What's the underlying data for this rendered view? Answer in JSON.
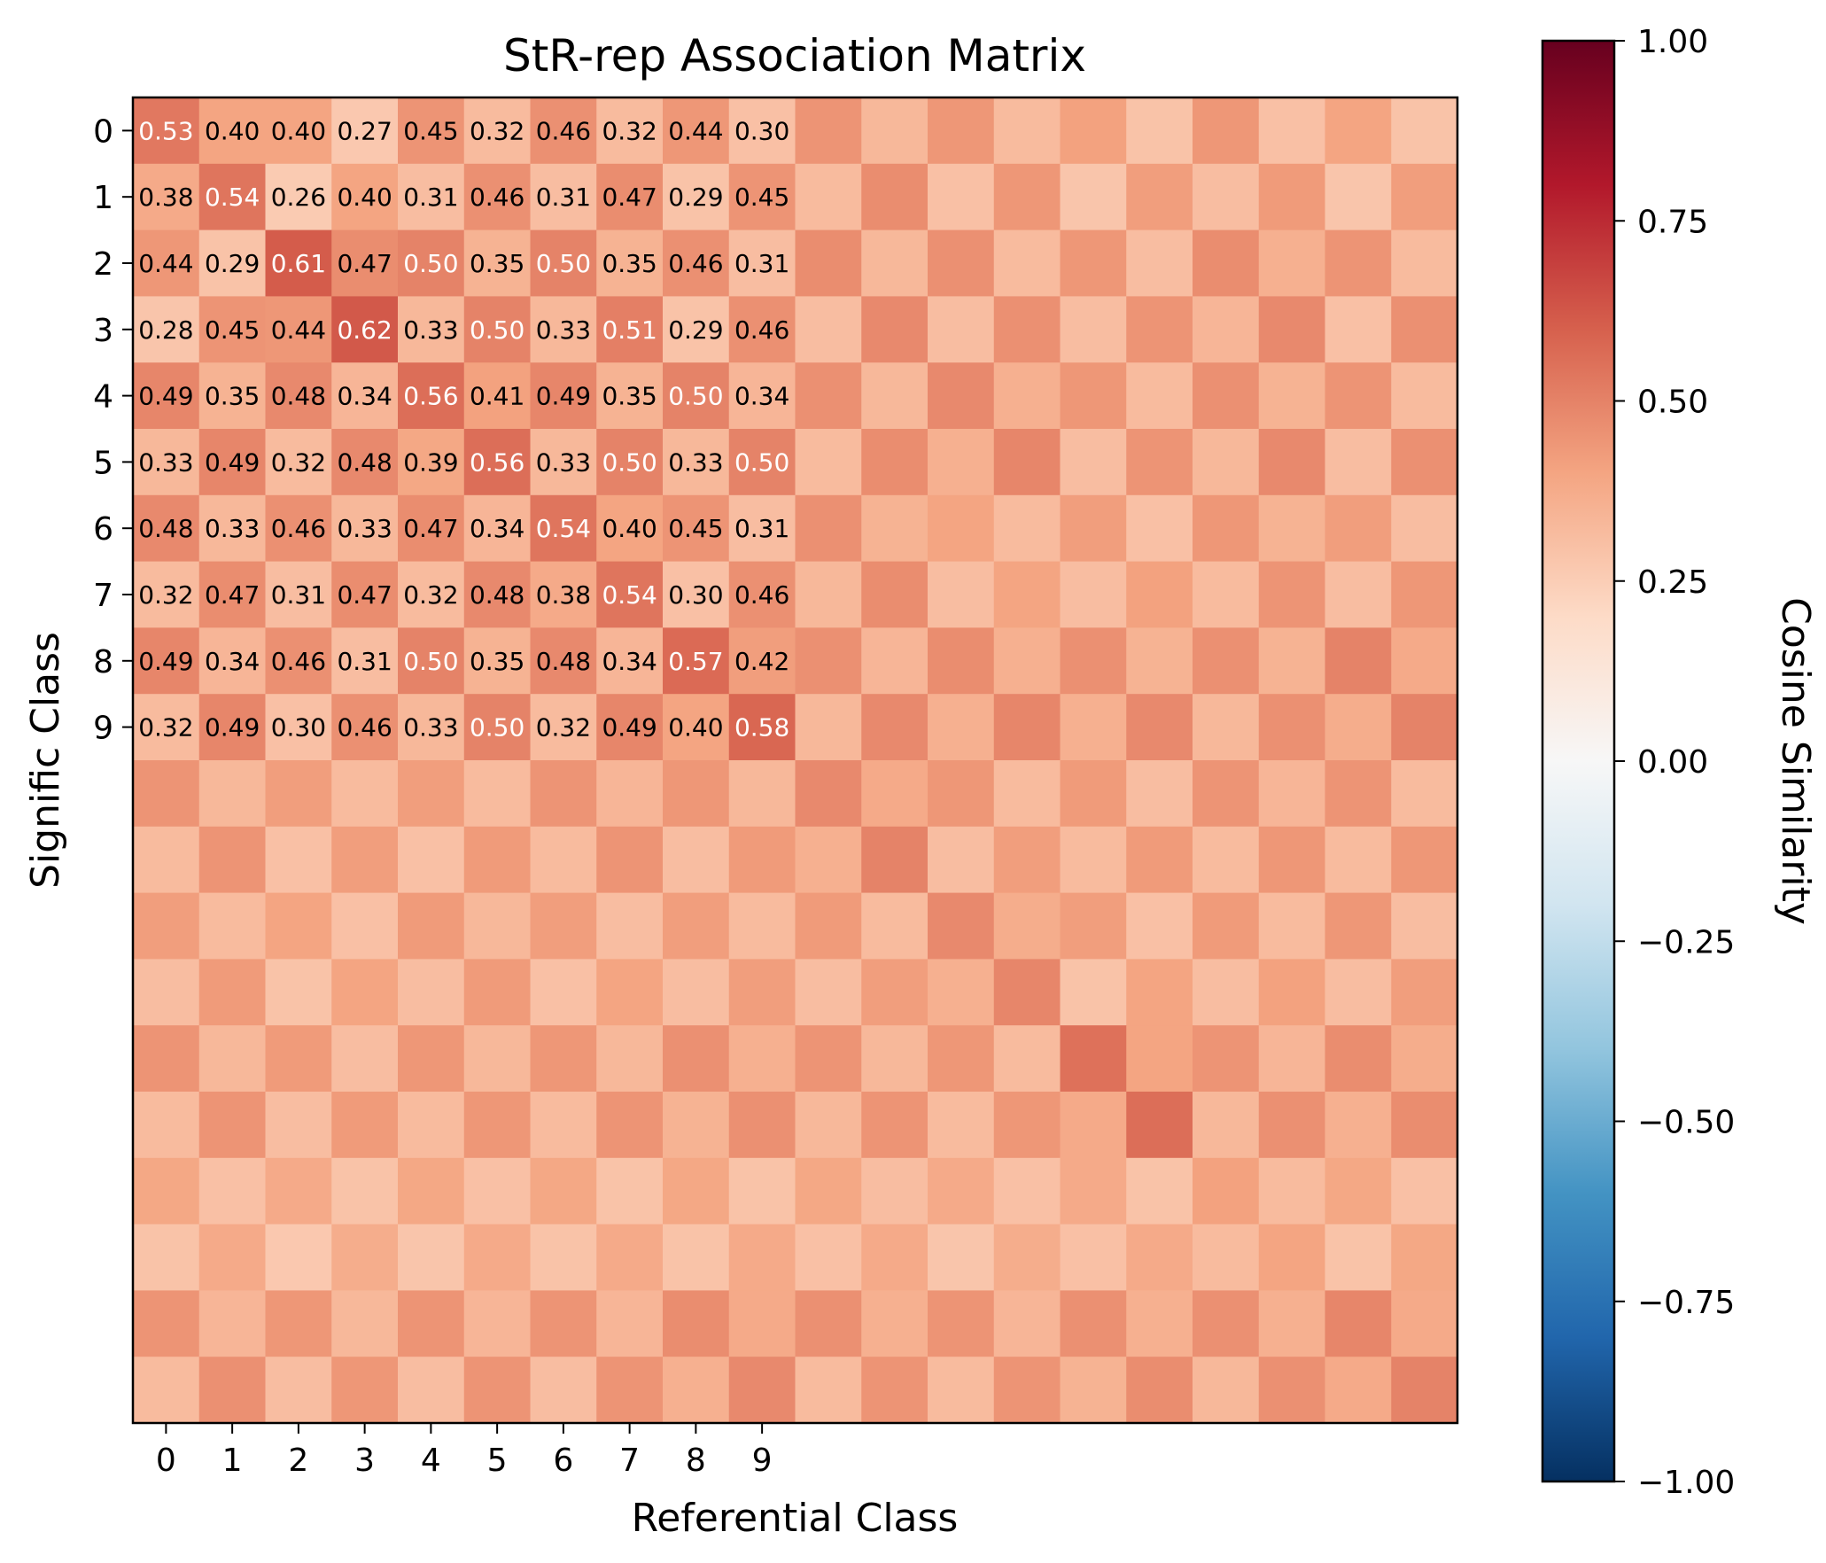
{
  "chart_data": {
    "type": "heatmap",
    "title": "StR-rep Association Matrix",
    "xlabel": "Referential Class",
    "ylabel": "Signific Class",
    "x_tick_labels": [
      "0",
      "1",
      "2",
      "3",
      "4",
      "5",
      "6",
      "7",
      "8",
      "9"
    ],
    "y_tick_labels": [
      "0",
      "1",
      "2",
      "3",
      "4",
      "5",
      "6",
      "7",
      "8",
      "9"
    ],
    "n_rows": 20,
    "n_cols": 20,
    "colorbar": {
      "label": "Cosine Similarity",
      "range": [
        -1.0,
        1.0
      ],
      "tick_labels": [
        "1.00",
        "0.75",
        "0.50",
        "0.25",
        "0.00",
        "−0.25",
        "−0.50",
        "−0.75",
        "−1.00"
      ],
      "tick_values": [
        1.0,
        0.75,
        0.5,
        0.25,
        0.0,
        -0.25,
        -0.5,
        -0.75,
        -1.0
      ],
      "colormap": "RdBu_r",
      "colors": [
        "#053061",
        "#2166ac",
        "#4393c3",
        "#92c5de",
        "#d1e5f0",
        "#f7f7f7",
        "#fddbc7",
        "#f4a582",
        "#d6604d",
        "#b2182b",
        "#67001f"
      ]
    },
    "annotation_labels": [
      [
        "0.53",
        "0.40",
        "0.40",
        "0.27",
        "0.45",
        "0.32",
        "0.46",
        "0.32",
        "0.44",
        "0.30"
      ],
      [
        "0.38",
        "0.54",
        "0.26",
        "0.40",
        "0.31",
        "0.46",
        "0.31",
        "0.47",
        "0.29",
        "0.45"
      ],
      [
        "0.44",
        "0.29",
        "0.61",
        "0.47",
        "0.50",
        "0.35",
        "0.50",
        "0.35",
        "0.46",
        "0.31"
      ],
      [
        "0.28",
        "0.45",
        "0.44",
        "0.62",
        "0.33",
        "0.50",
        "0.33",
        "0.51",
        "0.29",
        "0.46"
      ],
      [
        "0.49",
        "0.35",
        "0.48",
        "0.34",
        "0.56",
        "0.41",
        "0.49",
        "0.35",
        "0.50",
        "0.34"
      ],
      [
        "0.33",
        "0.49",
        "0.32",
        "0.48",
        "0.39",
        "0.56",
        "0.33",
        "0.50",
        "0.33",
        "0.50"
      ],
      [
        "0.48",
        "0.33",
        "0.46",
        "0.33",
        "0.47",
        "0.34",
        "0.54",
        "0.40",
        "0.45",
        "0.31"
      ],
      [
        "0.32",
        "0.47",
        "0.31",
        "0.47",
        "0.32",
        "0.48",
        "0.38",
        "0.54",
        "0.30",
        "0.46"
      ],
      [
        "0.49",
        "0.34",
        "0.46",
        "0.31",
        "0.50",
        "0.35",
        "0.48",
        "0.34",
        "0.57",
        "0.42"
      ],
      [
        "0.32",
        "0.49",
        "0.30",
        "0.46",
        "0.33",
        "0.50",
        "0.32",
        "0.49",
        "0.40",
        "0.58"
      ]
    ],
    "values": [
      [
        0.53,
        0.4,
        0.4,
        0.27,
        0.45,
        0.32,
        0.46,
        0.32,
        0.44,
        0.3,
        0.45,
        0.33,
        0.44,
        0.32,
        0.41,
        0.29,
        0.44,
        0.3,
        0.4,
        0.29
      ],
      [
        0.38,
        0.54,
        0.26,
        0.4,
        0.31,
        0.46,
        0.31,
        0.47,
        0.29,
        0.45,
        0.32,
        0.47,
        0.3,
        0.44,
        0.28,
        0.42,
        0.31,
        0.43,
        0.28,
        0.42
      ],
      [
        0.44,
        0.29,
        0.61,
        0.47,
        0.5,
        0.35,
        0.5,
        0.35,
        0.46,
        0.31,
        0.47,
        0.33,
        0.46,
        0.32,
        0.44,
        0.31,
        0.47,
        0.36,
        0.45,
        0.32
      ],
      [
        0.28,
        0.45,
        0.44,
        0.62,
        0.33,
        0.5,
        0.33,
        0.51,
        0.29,
        0.46,
        0.31,
        0.48,
        0.31,
        0.46,
        0.31,
        0.45,
        0.34,
        0.48,
        0.3,
        0.46
      ],
      [
        0.49,
        0.35,
        0.48,
        0.34,
        0.56,
        0.41,
        0.49,
        0.35,
        0.5,
        0.34,
        0.46,
        0.33,
        0.48,
        0.36,
        0.44,
        0.32,
        0.46,
        0.35,
        0.45,
        0.32
      ],
      [
        0.33,
        0.49,
        0.32,
        0.48,
        0.39,
        0.56,
        0.33,
        0.5,
        0.33,
        0.5,
        0.32,
        0.47,
        0.36,
        0.49,
        0.31,
        0.45,
        0.33,
        0.48,
        0.31,
        0.46
      ],
      [
        0.48,
        0.33,
        0.46,
        0.33,
        0.47,
        0.34,
        0.54,
        0.4,
        0.45,
        0.31,
        0.46,
        0.35,
        0.4,
        0.32,
        0.42,
        0.3,
        0.44,
        0.35,
        0.42,
        0.31
      ],
      [
        0.32,
        0.47,
        0.31,
        0.47,
        0.32,
        0.48,
        0.38,
        0.54,
        0.3,
        0.46,
        0.33,
        0.47,
        0.31,
        0.4,
        0.31,
        0.41,
        0.32,
        0.45,
        0.31,
        0.44
      ],
      [
        0.49,
        0.34,
        0.46,
        0.31,
        0.5,
        0.35,
        0.48,
        0.34,
        0.57,
        0.42,
        0.46,
        0.34,
        0.47,
        0.36,
        0.46,
        0.35,
        0.46,
        0.35,
        0.5,
        0.38
      ],
      [
        0.32,
        0.49,
        0.3,
        0.46,
        0.33,
        0.5,
        0.32,
        0.49,
        0.4,
        0.58,
        0.33,
        0.48,
        0.36,
        0.49,
        0.36,
        0.48,
        0.33,
        0.46,
        0.37,
        0.5
      ],
      [
        0.45,
        0.33,
        0.42,
        0.32,
        0.42,
        0.32,
        0.45,
        0.34,
        0.44,
        0.33,
        0.48,
        0.38,
        0.44,
        0.32,
        0.43,
        0.31,
        0.45,
        0.34,
        0.45,
        0.32
      ],
      [
        0.32,
        0.45,
        0.3,
        0.42,
        0.3,
        0.43,
        0.32,
        0.45,
        0.31,
        0.43,
        0.36,
        0.5,
        0.31,
        0.42,
        0.32,
        0.43,
        0.32,
        0.44,
        0.32,
        0.44
      ],
      [
        0.42,
        0.32,
        0.4,
        0.3,
        0.43,
        0.33,
        0.42,
        0.31,
        0.42,
        0.32,
        0.43,
        0.32,
        0.48,
        0.37,
        0.42,
        0.3,
        0.43,
        0.32,
        0.44,
        0.31
      ],
      [
        0.31,
        0.43,
        0.29,
        0.4,
        0.31,
        0.43,
        0.3,
        0.4,
        0.31,
        0.42,
        0.31,
        0.42,
        0.36,
        0.49,
        0.29,
        0.4,
        0.31,
        0.41,
        0.31,
        0.42
      ],
      [
        0.45,
        0.33,
        0.43,
        0.31,
        0.44,
        0.33,
        0.44,
        0.33,
        0.46,
        0.36,
        0.45,
        0.33,
        0.44,
        0.32,
        0.55,
        0.4,
        0.45,
        0.34,
        0.47,
        0.37
      ],
      [
        0.32,
        0.45,
        0.31,
        0.43,
        0.32,
        0.44,
        0.32,
        0.45,
        0.35,
        0.46,
        0.33,
        0.45,
        0.32,
        0.44,
        0.38,
        0.56,
        0.33,
        0.46,
        0.36,
        0.47
      ],
      [
        0.39,
        0.3,
        0.38,
        0.29,
        0.39,
        0.3,
        0.39,
        0.29,
        0.39,
        0.29,
        0.39,
        0.31,
        0.38,
        0.3,
        0.38,
        0.29,
        0.41,
        0.32,
        0.39,
        0.3
      ],
      [
        0.29,
        0.38,
        0.27,
        0.37,
        0.28,
        0.38,
        0.29,
        0.38,
        0.29,
        0.38,
        0.3,
        0.38,
        0.28,
        0.37,
        0.3,
        0.38,
        0.32,
        0.4,
        0.29,
        0.39
      ],
      [
        0.45,
        0.34,
        0.44,
        0.33,
        0.45,
        0.34,
        0.45,
        0.34,
        0.47,
        0.38,
        0.46,
        0.36,
        0.45,
        0.34,
        0.46,
        0.36,
        0.46,
        0.36,
        0.49,
        0.38
      ],
      [
        0.32,
        0.46,
        0.31,
        0.44,
        0.31,
        0.45,
        0.31,
        0.45,
        0.36,
        0.48,
        0.32,
        0.45,
        0.32,
        0.45,
        0.35,
        0.47,
        0.33,
        0.46,
        0.38,
        0.5
      ]
    ],
    "grid": false,
    "legend": "none"
  }
}
